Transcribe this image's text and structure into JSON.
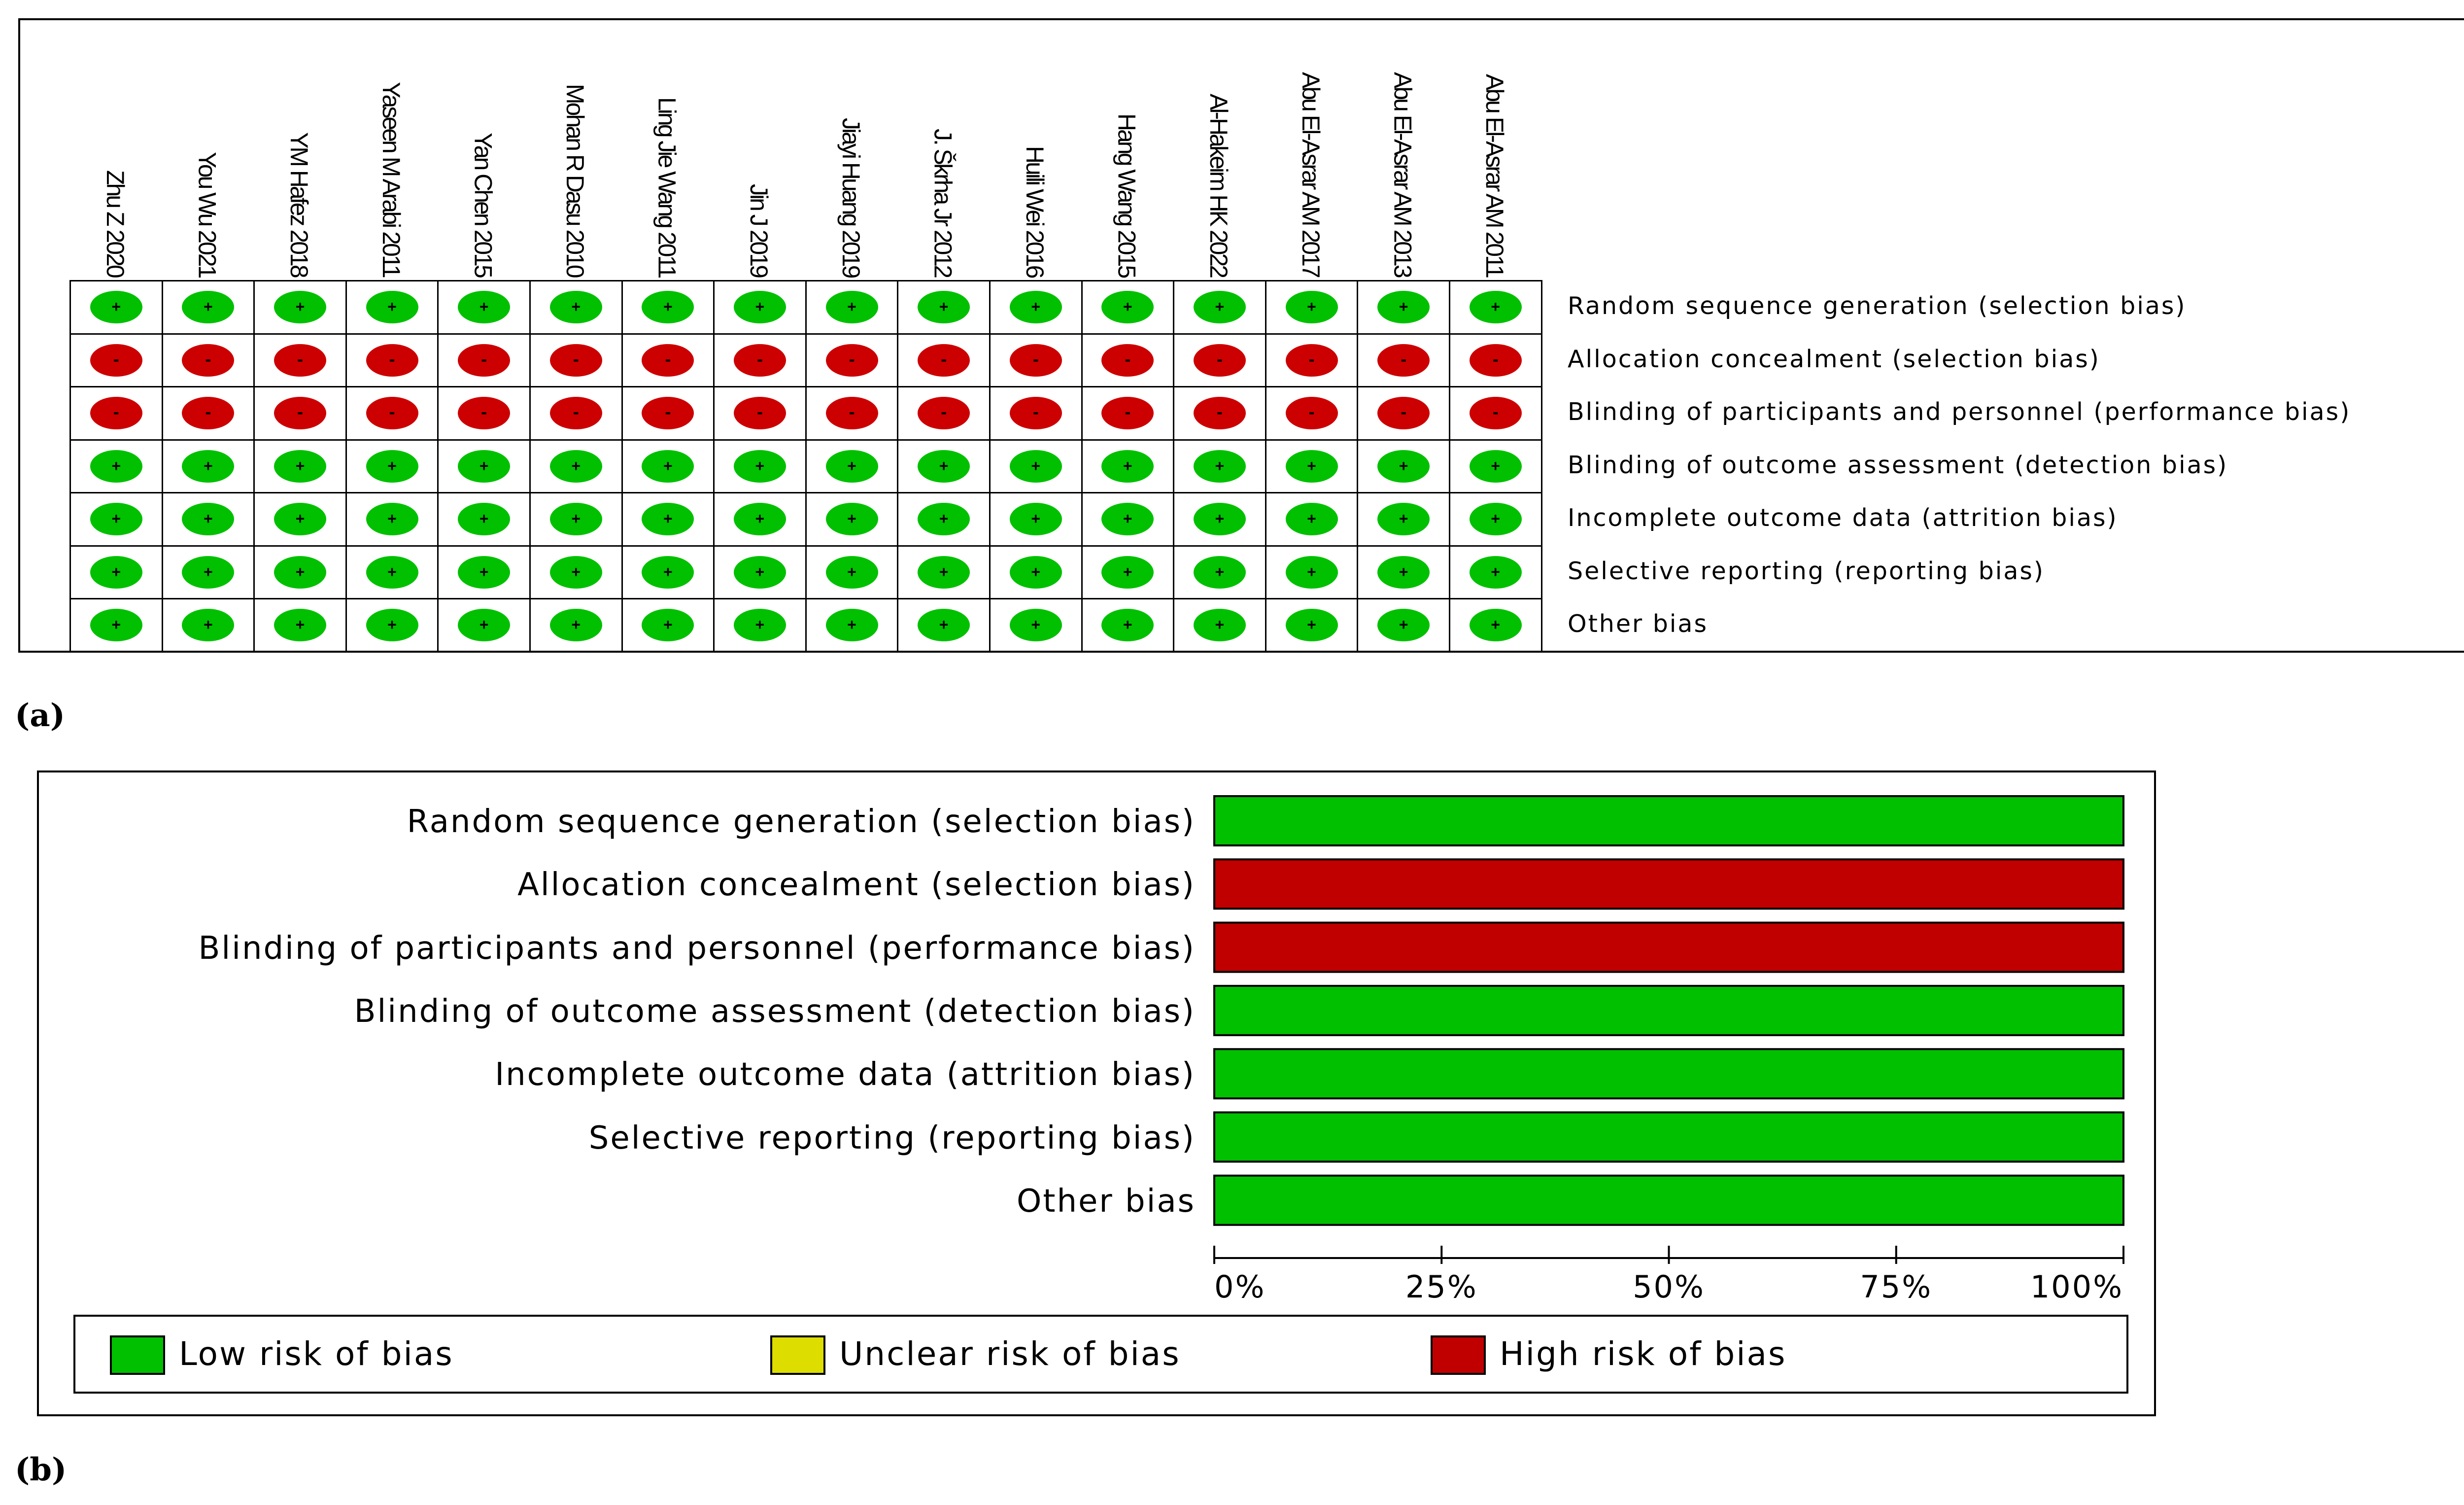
{
  "panel_a": {
    "caption": "(a)",
    "studies": [
      "Zhu Z 2020",
      "You Wu 2021",
      "YM Hafez 2018",
      "Yaseen M Arabi 2011",
      "Yan Chen 2015",
      "Mohan R Dasu 2010",
      "Ling Jie Wang 2011",
      "Jin J 2019",
      "Jiayi Huang 2019",
      "J. Škrha Jr 2012",
      "Huili Wei 2016",
      "Hang Wang 2015",
      "Al-Hakeim HK 2022",
      "Abu El-Asrar AM 2017",
      "Abu El-Asrar AM 2013",
      "Abu El-Asrar AM 2011"
    ],
    "symbols": {
      "low": "+",
      "high": "-"
    }
  },
  "panel_b": {
    "caption": "(b)",
    "axis_ticks": [
      "0%",
      "25%",
      "50%",
      "75%",
      "100%"
    ],
    "legend": [
      {
        "label": "Low risk of bias",
        "color": "#00c000"
      },
      {
        "label": "Unclear risk of bias",
        "color": "#dddd00"
      },
      {
        "label": "High risk of bias",
        "color": "#c00000"
      }
    ]
  },
  "colors": {
    "low": "#00c000",
    "unclear": "#dddd00",
    "high": "#c00000"
  },
  "chart_data": [
    {
      "type": "table",
      "domains": [
        "Random sequence generation (selection bias)",
        "Allocation concealment (selection bias)",
        "Blinding of participants and personnel (performance bias)",
        "Blinding of outcome assessment (detection bias)",
        "Incomplete outcome data (attrition bias)",
        "Selective reporting (reporting bias)",
        "Other bias"
      ],
      "judgements": [
        "low",
        "high",
        "high",
        "low",
        "low",
        "low",
        "low"
      ]
    },
    {
      "type": "bar",
      "categories": [
        "Random sequence generation (selection bias)",
        "Allocation concealment (selection bias)",
        "Blinding of participants and personnel (performance bias)",
        "Blinding of outcome assessment (detection bias)",
        "Incomplete outcome data (attrition bias)",
        "Selective reporting (reporting bias)",
        "Other bias"
      ],
      "series": [
        {
          "name": "Low risk of bias",
          "values": [
            100,
            0,
            0,
            100,
            100,
            100,
            100
          ]
        },
        {
          "name": "Unclear risk of bias",
          "values": [
            0,
            0,
            0,
            0,
            0,
            0,
            0
          ]
        },
        {
          "name": "High risk of bias",
          "values": [
            0,
            100,
            100,
            0,
            0,
            0,
            0
          ]
        }
      ],
      "xlim": [
        0,
        100
      ],
      "stacked": true,
      "orientation": "horizontal",
      "legend": "bottom"
    }
  ]
}
